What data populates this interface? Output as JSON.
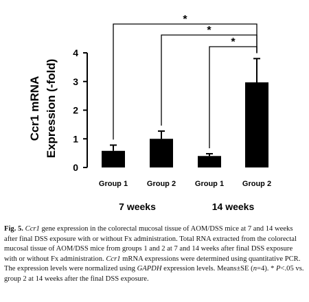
{
  "chart_data": {
    "type": "bar",
    "categories": [
      "Group 1",
      "Group 2",
      "Group 1",
      "Group 2"
    ],
    "groups": [
      {
        "label": "7 weeks",
        "members": [
          0,
          1
        ]
      },
      {
        "label": "14 weeks",
        "members": [
          2,
          3
        ]
      }
    ],
    "values": [
      0.58,
      1.0,
      0.4,
      2.97
    ],
    "errors": [
      0.2,
      0.27,
      0.08,
      0.83
    ],
    "ylabel_line1": "Ccr1 mRNA",
    "ylabel_line2": "Expression (-fold)",
    "ylim": [
      0,
      4
    ],
    "yticks": [
      0,
      1,
      2,
      3,
      4
    ],
    "grid": false,
    "bar_color": "#000000",
    "significance": [
      {
        "from": 0,
        "to": 3,
        "label": "*"
      },
      {
        "from": 1,
        "to": 3,
        "label": "*"
      },
      {
        "from": 2,
        "to": 3,
        "label": "*"
      }
    ]
  },
  "caption": {
    "label": "Fig. 5.",
    "gene": "Ccr1",
    "text1": " gene expression in the colorectal mucosal tissue of AOM/DSS mice at 7 and 14 weeks after final DSS exposure with or without Fx administration. Total RNA extracted from the colorectal mucosal tissue of AOM/DSS mice from groups 1 and 2 at 7 and 14 weeks after final DSS exposure with or without Fx administration. ",
    "gene2": "Ccr1",
    "text2": " mRNA expressions were determined using quantitative PCR. The expression levels were normalized using ",
    "norm": "GAPDH",
    "text3": " expression levels. Means±SE (",
    "n_label": "n",
    "text4": "=4). * ",
    "p_label": "P",
    "text5": "<.05 vs. group 2 at 14 weeks after the final DSS exposure."
  }
}
